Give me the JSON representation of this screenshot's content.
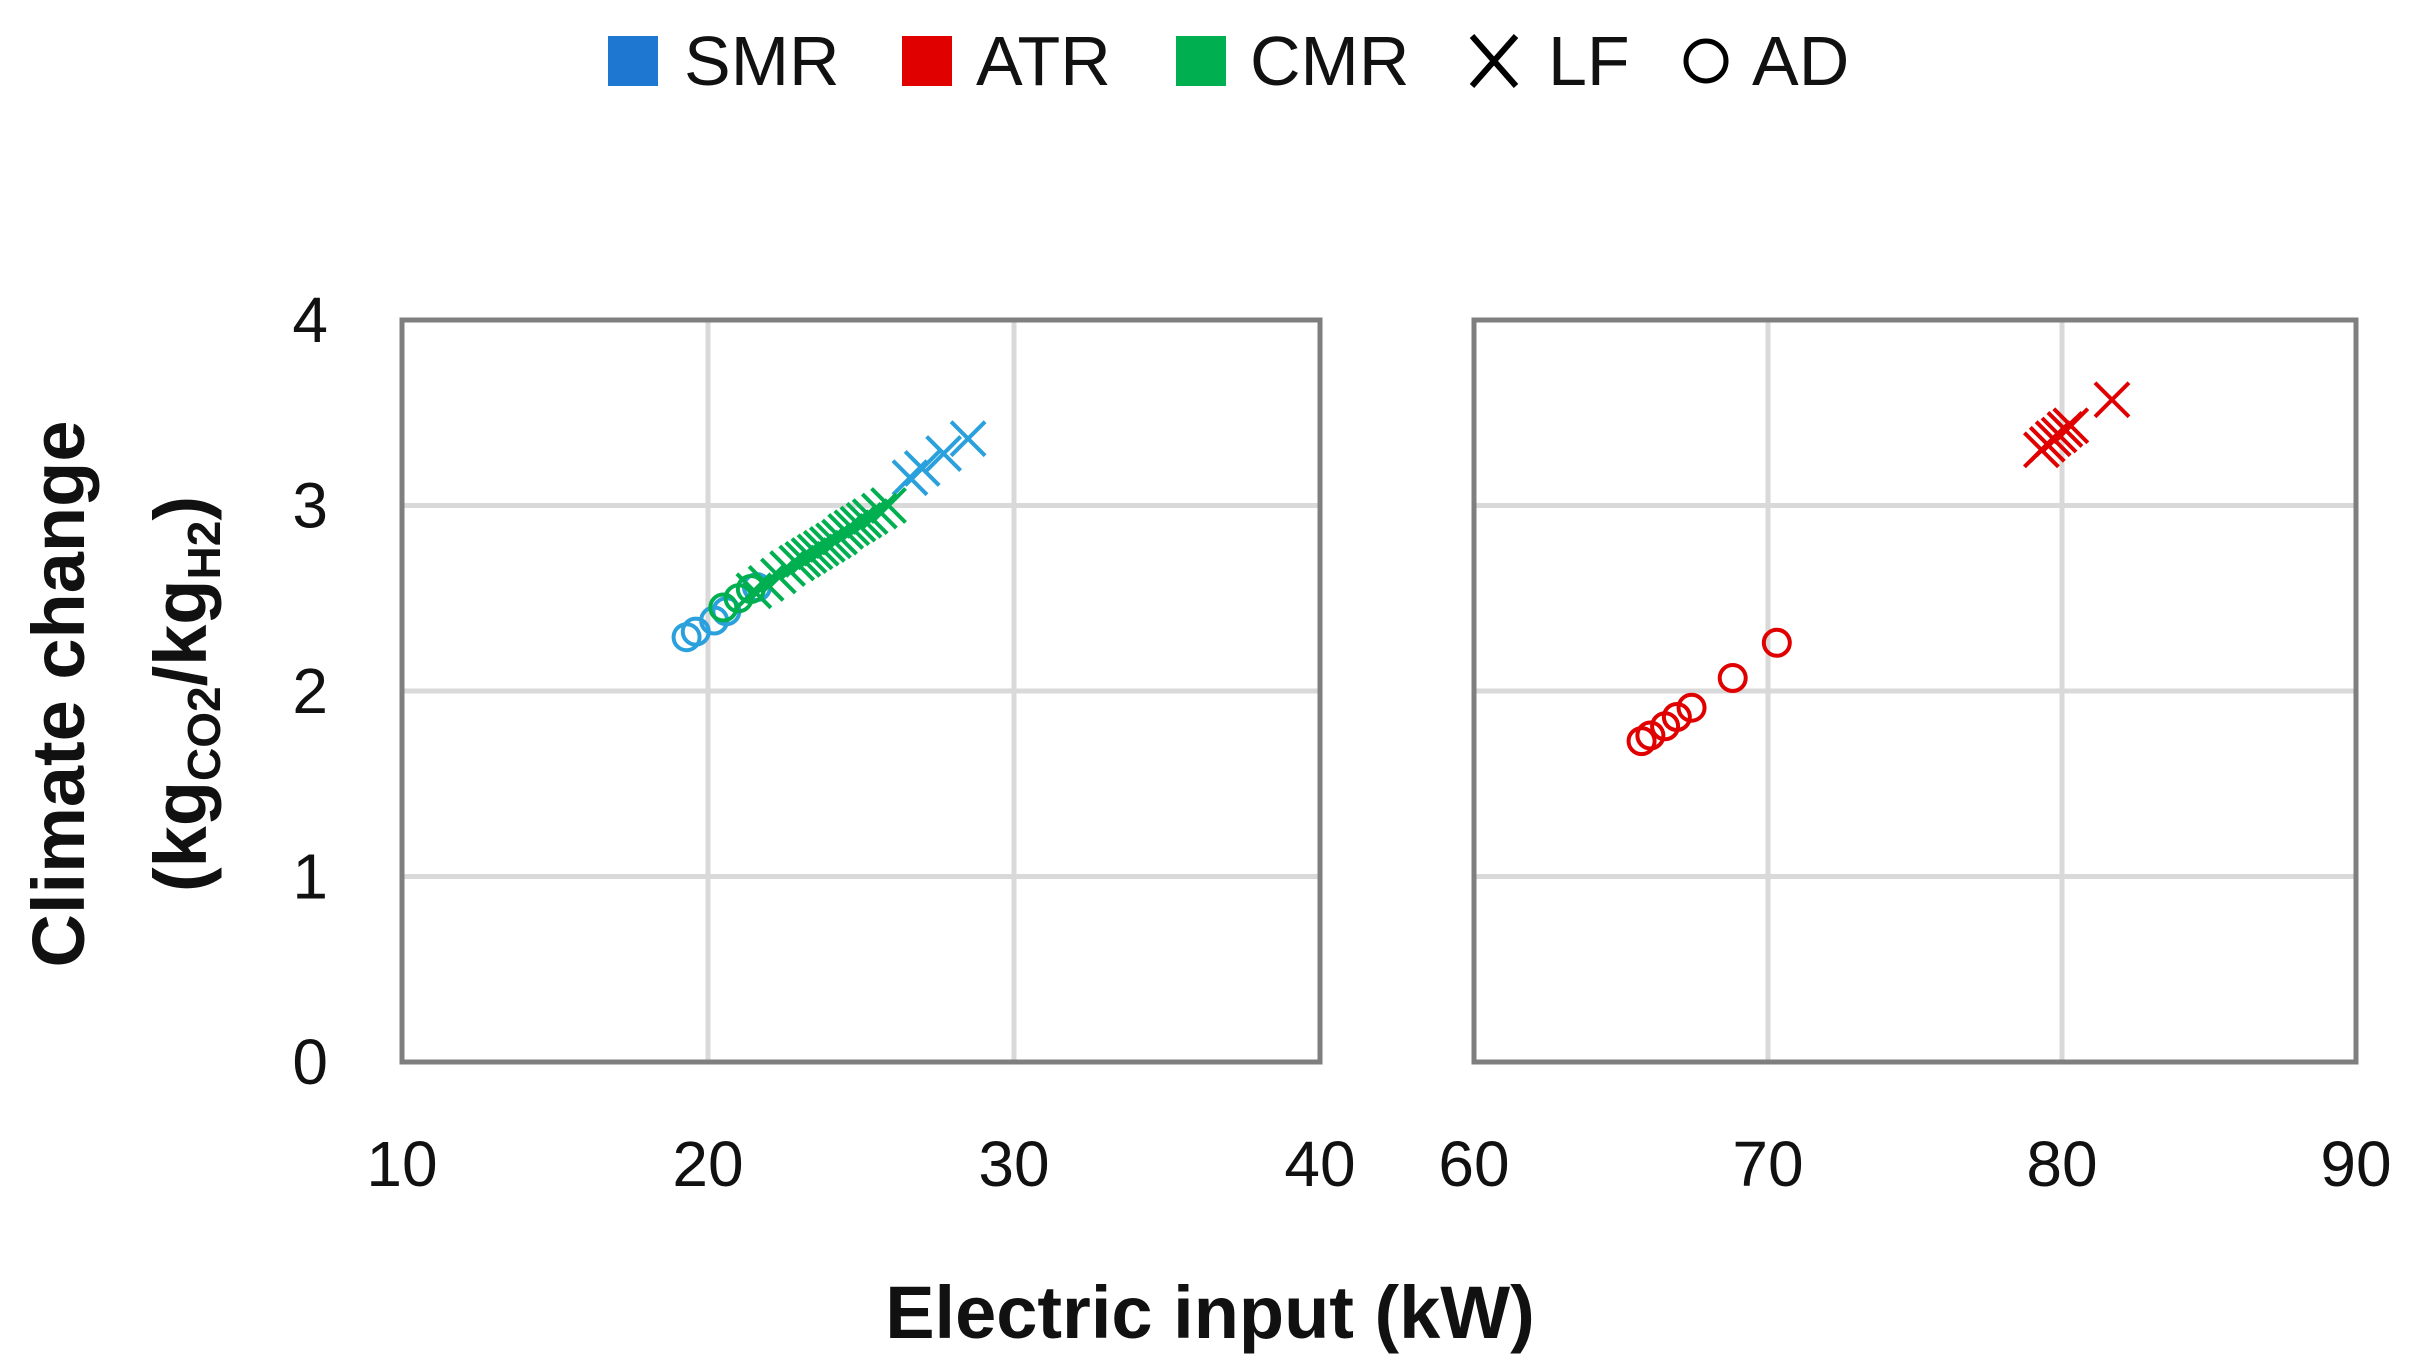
{
  "chart_data": {
    "type": "scatter",
    "xlabel": "Electric input (kW)",
    "ylabel": {
      "line1": "Climate change",
      "open": "(kg",
      "sub1": "CO2",
      "slash": "/kg",
      "sub2": "H2",
      "close": ")"
    },
    "ylim": [
      0,
      4
    ],
    "yticks": [
      "0",
      "1",
      "2",
      "3",
      "4"
    ],
    "grid": true,
    "legend_position": "top",
    "legend": [
      {
        "label": "SMR",
        "symbol": "square",
        "color": "#1E78D2"
      },
      {
        "label": "ATR",
        "symbol": "square",
        "color": "#E00000"
      },
      {
        "label": "CMR",
        "symbol": "square",
        "color": "#00B050"
      },
      {
        "label": "LF",
        "symbol": "cross",
        "color": "#000000"
      },
      {
        "label": "AD",
        "symbol": "circle",
        "color": "#000000"
      }
    ],
    "panels": [
      {
        "xlim": [
          10,
          40
        ],
        "xticks": [
          "10",
          "20",
          "30",
          "40"
        ],
        "series": [
          {
            "technology": "SMR",
            "feedstock": "AD",
            "color": "#2AA0DC",
            "marker": "circle",
            "points": [
              [
                19.3,
                2.29
              ],
              [
                19.6,
                2.32
              ],
              [
                20.2,
                2.38
              ],
              [
                20.6,
                2.43
              ],
              [
                21.6,
                2.56
              ]
            ]
          },
          {
            "technology": "SMR",
            "feedstock": "LF",
            "color": "#2AA0DC",
            "marker": "cross",
            "points": [
              [
                26.6,
                3.15
              ],
              [
                27.0,
                3.2
              ],
              [
                27.7,
                3.28
              ],
              [
                28.5,
                3.36
              ]
            ]
          },
          {
            "technology": "CMR",
            "feedstock": "AD",
            "color": "#00B050",
            "marker": "circle",
            "points": [
              [
                20.5,
                2.45
              ],
              [
                21.0,
                2.5
              ],
              [
                21.4,
                2.55
              ]
            ]
          },
          {
            "technology": "CMR",
            "feedstock": "LF",
            "color": "#00B050",
            "marker": "cross",
            "points": [
              [
                21.5,
                2.54
              ],
              [
                21.9,
                2.58
              ],
              [
                22.3,
                2.62
              ],
              [
                22.6,
                2.66
              ],
              [
                22.9,
                2.69
              ],
              [
                23.1,
                2.71
              ],
              [
                23.3,
                2.73
              ],
              [
                23.5,
                2.75
              ],
              [
                23.7,
                2.77
              ],
              [
                23.9,
                2.79
              ],
              [
                24.1,
                2.81
              ],
              [
                24.3,
                2.83
              ],
              [
                24.5,
                2.86
              ],
              [
                24.7,
                2.88
              ],
              [
                24.9,
                2.9
              ],
              [
                25.1,
                2.92
              ],
              [
                25.3,
                2.94
              ],
              [
                25.6,
                2.97
              ],
              [
                25.9,
                3.0
              ]
            ]
          }
        ]
      },
      {
        "xlim": [
          60,
          90
        ],
        "xticks": [
          "60",
          "70",
          "80",
          "90"
        ],
        "series": [
          {
            "technology": "ATR",
            "feedstock": "AD",
            "color": "#E00000",
            "marker": "circle",
            "points": [
              [
                65.7,
                1.73
              ],
              [
                66.0,
                1.76
              ],
              [
                66.5,
                1.81
              ],
              [
                66.9,
                1.86
              ],
              [
                67.4,
                1.91
              ],
              [
                68.8,
                2.07
              ],
              [
                70.3,
                2.26
              ]
            ]
          },
          {
            "technology": "ATR",
            "feedstock": "LF",
            "color": "#E00000",
            "marker": "cross",
            "points": [
              [
                79.3,
                3.3
              ],
              [
                79.5,
                3.33
              ],
              [
                79.7,
                3.36
              ],
              [
                79.9,
                3.38
              ],
              [
                80.1,
                3.41
              ],
              [
                80.3,
                3.43
              ],
              [
                81.7,
                3.57
              ]
            ]
          }
        ]
      }
    ]
  }
}
